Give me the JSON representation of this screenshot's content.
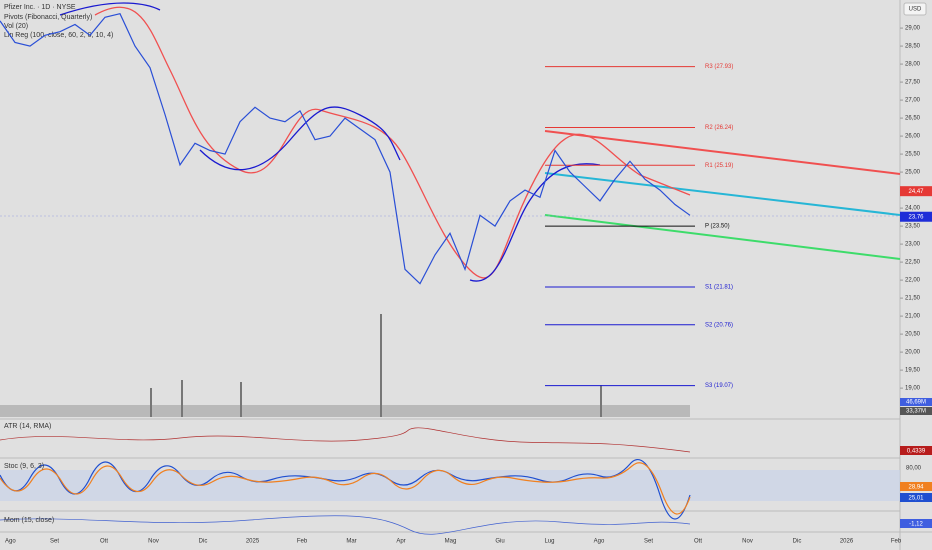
{
  "chart_data": {
    "type": "line",
    "title": "Pfizer Inc. · 1D · NYSE",
    "indicators": [
      "Pivots (Fibonacci, Quarterly)",
      "Vol (20)",
      "Lin Reg (100, close, 60, 2, 0, 10, 4)"
    ],
    "currency": "USD",
    "color": "#2a4fd6",
    "values": [
      29.2,
      28.6,
      28.5,
      28.8,
      28.9,
      29.1,
      28.8,
      29.3,
      29.4,
      28.5,
      27.9,
      26.6,
      25.2,
      25.8,
      25.6,
      25.5,
      26.4,
      26.8,
      26.5,
      26.4,
      26.7,
      25.9,
      26.0,
      26.5,
      26.2,
      25.9,
      25.0,
      22.3,
      21.9,
      22.7,
      23.3,
      22.3,
      23.8,
      23.5,
      24.2,
      24.5,
      24.3,
      25.6,
      25.0,
      24.6,
      24.2,
      24.8,
      25.3,
      24.8,
      24.5,
      24.1,
      23.8
    ],
    "ylim": [
      18.17,
      29.78
    ],
    "yticks": [
      {
        "value": 19,
        "label": "19,00"
      },
      {
        "value": 19.5,
        "label": "19,50"
      },
      {
        "value": 20,
        "label": "20,00"
      },
      {
        "value": 20.5,
        "label": "20,50"
      },
      {
        "value": 21,
        "label": "21,00"
      },
      {
        "value": 21.5,
        "label": "21,50"
      },
      {
        "value": 22,
        "label": "22,00"
      },
      {
        "value": 22.5,
        "label": "22,50"
      },
      {
        "value": 23,
        "label": "23,00"
      },
      {
        "value": 23.5,
        "label": "23,50"
      },
      {
        "value": 24,
        "label": "24,00"
      },
      {
        "value": 24.5,
        "label": "24,50"
      },
      {
        "value": 25,
        "label": "25,00"
      },
      {
        "value": 25.5,
        "label": "25,50"
      },
      {
        "value": 26,
        "label": "26,00"
      },
      {
        "value": 26.5,
        "label": "26,50"
      },
      {
        "value": 27,
        "label": "27,00"
      },
      {
        "value": 27.5,
        "label": "27,50"
      },
      {
        "value": 28,
        "label": "28,00"
      },
      {
        "value": 28.5,
        "label": "28,50"
      },
      {
        "value": 29,
        "label": "29,00"
      }
    ],
    "x_labels": [
      "Ago",
      "Set",
      "Ott",
      "Nov",
      "Dic",
      "2025",
      "Feb",
      "Mar",
      "Apr",
      "Mag",
      "Giu",
      "Lug",
      "Ago",
      "Set",
      "Ott",
      "Nov",
      "Dic",
      "2026",
      "Feb"
    ],
    "levels": [
      {
        "value": 27.93,
        "label": "R3 (27.93)",
        "color": "#e53935"
      },
      {
        "value": 26.24,
        "label": "R2 (26.24)",
        "color": "#e53935"
      },
      {
        "value": 25.19,
        "label": "R1 (25.19)",
        "color": "#e53935"
      },
      {
        "value": 23.5,
        "label": "P (23.50)",
        "color": "#111111"
      },
      {
        "value": 21.81,
        "label": "S1 (21.81)",
        "color": "#1a1ad0"
      },
      {
        "value": 20.76,
        "label": "S2 (20.76)",
        "color": "#1a1ad0"
      },
      {
        "value": 19.07,
        "label": "S3 (19.07)",
        "color": "#1a1ad0"
      }
    ],
    "price_tags": [
      {
        "value": 24.47,
        "label": "24,47",
        "color": "#e53935"
      },
      {
        "value": 23.76,
        "label": "23,76",
        "color": "#1e2dd8"
      }
    ],
    "volume_tags": [
      "46,69M",
      "33,37M"
    ],
    "atr": {
      "title": "ATR (14, RMA)",
      "tag": "0,4339"
    },
    "stoch": {
      "title": "Stoc (9, 6, 3)",
      "level": "80,00",
      "tags": [
        "28,94",
        "25,01"
      ]
    },
    "mom": {
      "title": "Mom (15, close)",
      "tag": "-1,12"
    }
  }
}
